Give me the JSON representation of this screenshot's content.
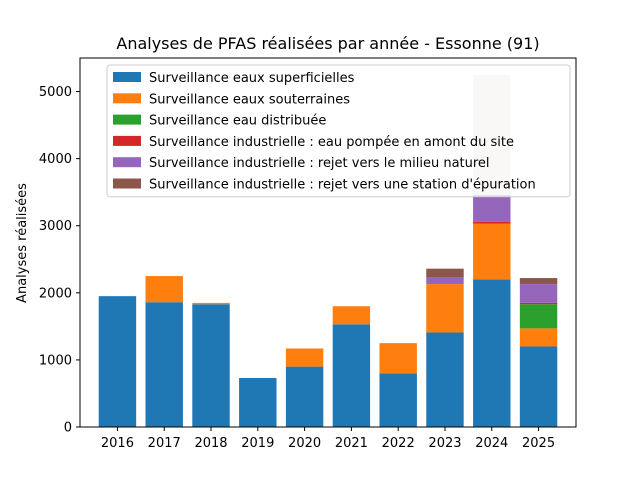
{
  "chart_data": {
    "type": "bar",
    "stacked": true,
    "title": "Analyses de PFAS réalisées par année - Essonne (91)",
    "xlabel": "",
    "ylabel": "Analyses réalisées",
    "ylim": [
      0,
      5500
    ],
    "yticks": [
      0,
      1000,
      2000,
      3000,
      4000,
      5000
    ],
    "yticklabels": [
      "0",
      "1000",
      "2000",
      "3000",
      "4000",
      "5000"
    ],
    "grid": false,
    "legend_position": "upper-left",
    "categories": [
      "2016",
      "2017",
      "2018",
      "2019",
      "2020",
      "2021",
      "2022",
      "2023",
      "2024",
      "2025"
    ],
    "series": [
      {
        "name": "Surveillance eaux superficielles",
        "color": "#1f77b4",
        "values": [
          1950,
          1860,
          1830,
          730,
          900,
          1530,
          800,
          1410,
          2200,
          1200
        ]
      },
      {
        "name": "Surveillance eaux souterraines",
        "color": "#ff7f0e",
        "values": [
          0,
          390,
          20,
          0,
          270,
          270,
          450,
          720,
          830,
          270
        ]
      },
      {
        "name": "Surveillance eau distribuée",
        "color": "#2ca02c",
        "values": [
          0,
          0,
          0,
          0,
          0,
          0,
          0,
          0,
          0,
          360
        ]
      },
      {
        "name": "Surveillance industrielle : eau pompée en amont du site",
        "color": "#d62728",
        "values": [
          0,
          0,
          0,
          0,
          0,
          0,
          0,
          0,
          30,
          20
        ]
      },
      {
        "name": "Surveillance industrielle : rejet vers le milieu naturel",
        "color": "#9467bd",
        "values": [
          0,
          0,
          0,
          0,
          0,
          0,
          0,
          100,
          400,
          280
        ]
      },
      {
        "name": "Surveillance industrielle : rejet vers une station d'épuration",
        "color": "#8c564b",
        "values": [
          0,
          0,
          0,
          0,
          0,
          0,
          0,
          130,
          1790,
          90
        ]
      }
    ]
  }
}
